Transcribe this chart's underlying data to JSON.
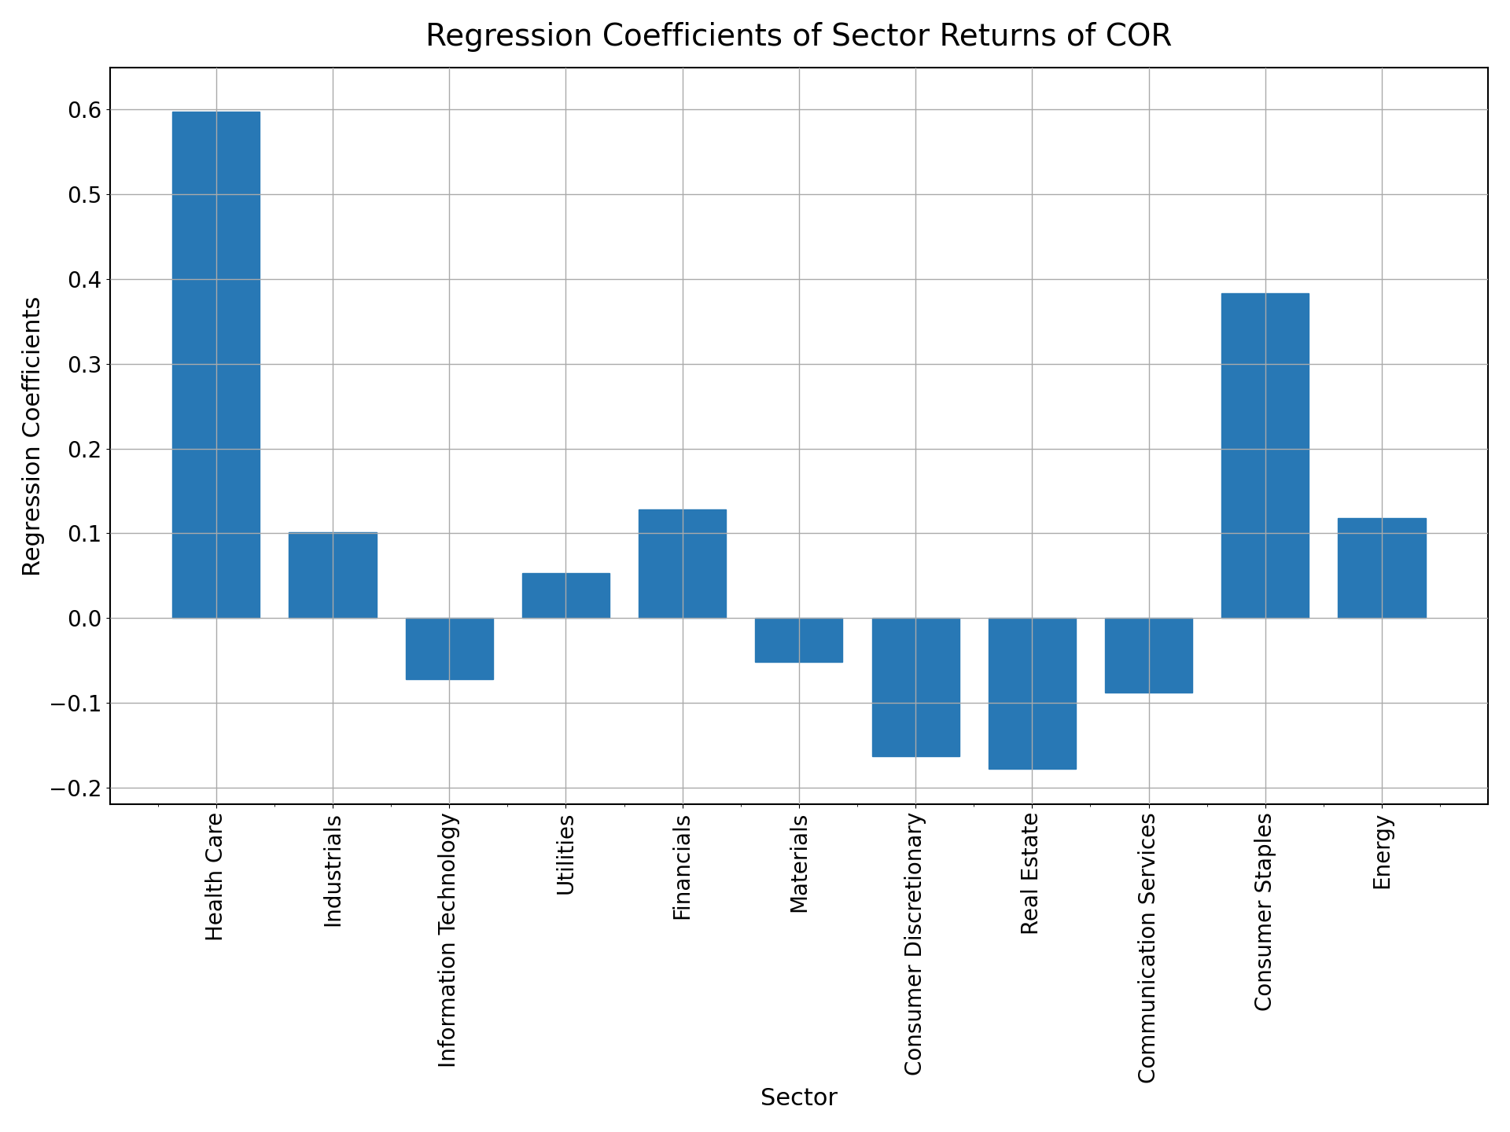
{
  "categories": [
    "Health Care",
    "Industrials",
    "Information Technology",
    "Utilities",
    "Financials",
    "Materials",
    "Consumer Discretionary",
    "Real Estate",
    "Communication Services",
    "Consumer Staples",
    "Energy"
  ],
  "values": [
    0.598,
    0.101,
    -0.072,
    0.053,
    0.128,
    -0.052,
    -0.163,
    -0.178,
    -0.088,
    0.383,
    0.118
  ],
  "bar_color": "#2878b5",
  "title": "Regression Coefficients of Sector Returns of COR",
  "xlabel": "Sector",
  "ylabel": "Regression Coefficients",
  "ylim": [
    -0.22,
    0.65
  ],
  "yticks": [
    -0.2,
    -0.1,
    0.0,
    0.1,
    0.2,
    0.3,
    0.4,
    0.5,
    0.6
  ],
  "title_fontsize": 28,
  "label_fontsize": 22,
  "tick_fontsize": 20,
  "bar_width": 0.75,
  "background_color": "#ffffff",
  "grid_color": "#aaaaaa",
  "grid_linewidth": 1.0
}
